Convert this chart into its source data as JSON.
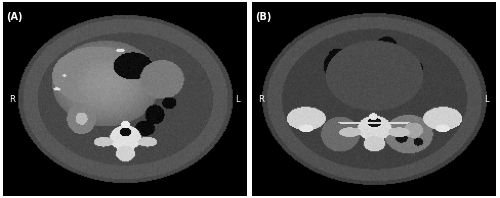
{
  "figure_width": 5.0,
  "figure_height": 1.98,
  "dpi": 100,
  "background_color": "#ffffff",
  "outer_border_color": "#888888",
  "label_A": "(A)",
  "label_B": "(B)",
  "label_R": "R",
  "label_L": "L",
  "label_color": "#ffffff",
  "label_fontsize": 7,
  "panel_A_bg": "#000000",
  "panel_B_bg": "#000000",
  "white_border": "#ffffff",
  "gray_border": "#cccccc"
}
